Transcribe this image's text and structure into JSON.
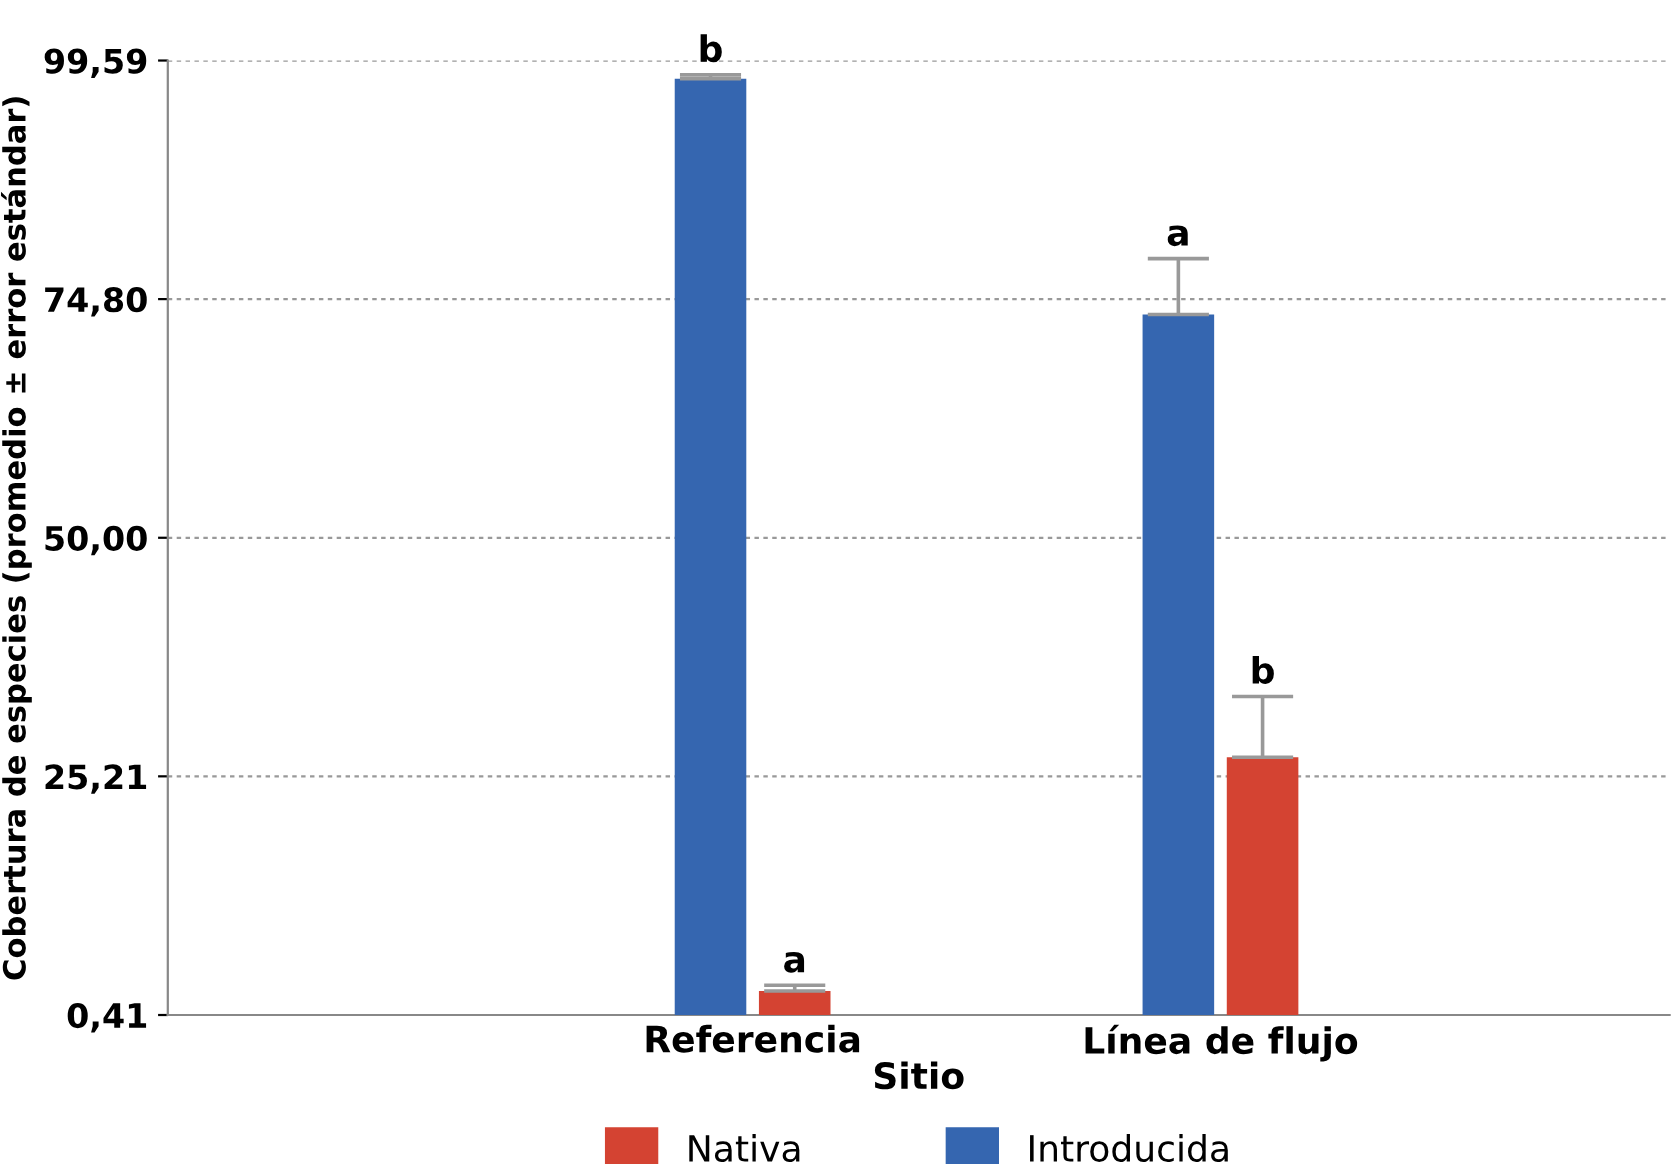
{
  "chart_data": {
    "type": "bar",
    "xlabel": "Sitio",
    "ylabel": "Cobertura de especies (promedio ± error estándar)",
    "categories": [
      "Referencia",
      "Línea de flujo"
    ],
    "series": [
      {
        "name": "Introducida",
        "color": "#3566b0",
        "values": [
          97.7,
          73.2
        ],
        "errors": [
          [
            97.7,
            98.1
          ],
          [
            73.2,
            79.0
          ]
        ]
      },
      {
        "name": "Nativa",
        "color": "#d44332",
        "values": [
          2.9,
          27.2
        ],
        "errors": [
          [
            2.9,
            3.5
          ],
          [
            27.2,
            33.5
          ]
        ]
      }
    ],
    "ylim": [
      0.41,
      99.59
    ],
    "yticks": [
      {
        "value": 0.41,
        "label": "0,41"
      },
      {
        "value": 25.21,
        "label": "25,21"
      },
      {
        "value": 50.0,
        "label": "50,00"
      },
      {
        "value": 74.8,
        "label": "74,80"
      },
      {
        "value": 99.59,
        "label": "99,59"
      }
    ],
    "grid": "y",
    "legend": "bottom",
    "annotations": [
      "b",
      "a",
      "a",
      "b"
    ]
  }
}
